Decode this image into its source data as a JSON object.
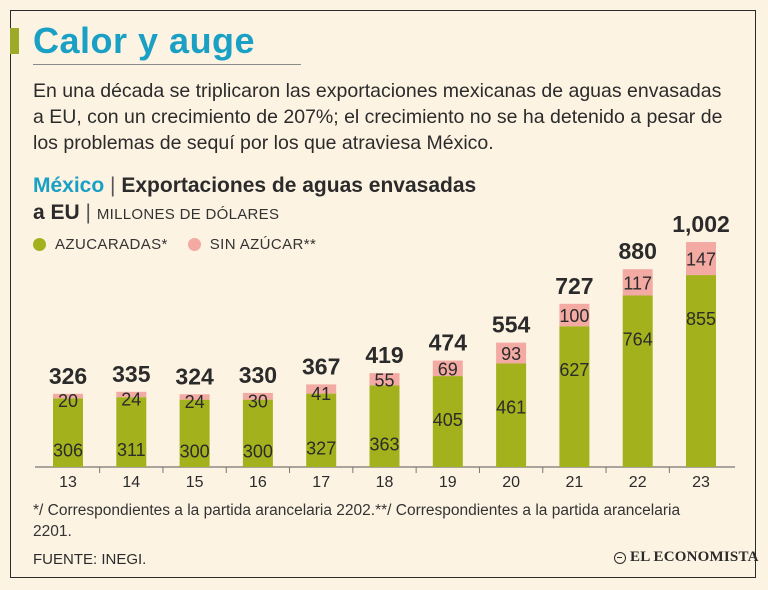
{
  "header": {
    "title": "Calor y auge",
    "intro": "En una década se triplicaron las exportaciones mexicanas de aguas envasadas a EU, con un crecimiento de 207%; el crecimiento no se ha detenido a pesar de los problemas de sequí por los que atraviesa México."
  },
  "chart_heading": {
    "country": "México",
    "title_line1": "Exportaciones de aguas envasadas",
    "title_line2": "a EU",
    "units": "MILLONES DE DÓLARES"
  },
  "legend": {
    "sugar_label": "AZUCARADAS*",
    "no_sugar_label": "SIN AZÚCAR**"
  },
  "colors": {
    "sugar": "#a3b21c",
    "no_sugar": "#f2aaa3",
    "title": "#1aa0c4",
    "text": "#2b2b2b"
  },
  "chart_data": {
    "type": "bar",
    "stacked": true,
    "title": "Exportaciones de aguas envasadas a EU",
    "ylabel": "MILLONES DE DÓLARES",
    "categories": [
      "13",
      "14",
      "15",
      "16",
      "17",
      "18",
      "19",
      "20",
      "21",
      "22",
      "23"
    ],
    "series": [
      {
        "name": "AZUCARADAS*",
        "values": [
          306,
          311,
          300,
          300,
          327,
          363,
          405,
          461,
          627,
          764,
          855
        ]
      },
      {
        "name": "SIN AZÚCAR**",
        "values": [
          20,
          24,
          24,
          30,
          41,
          55,
          69,
          93,
          100,
          117,
          147
        ]
      }
    ],
    "total_labels": [
      "326",
      "335",
      "324",
      "330",
      "367",
      "419",
      "474",
      "554",
      "727",
      "880",
      "1,002"
    ],
    "ylim": [
      0,
      1050
    ]
  },
  "footer": {
    "notes": "*/ Correspondientes a la partida arancelaria 2202.**/ Correspondientes a la partida arancelaria 2201.",
    "source": "FUENTE: INEGI.",
    "brand": "EL ECONOMISTA"
  }
}
